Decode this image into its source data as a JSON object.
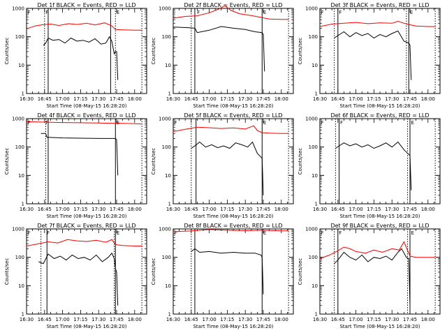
{
  "chart_data": [
    {
      "type": "line",
      "title": "Det 1f BLACK = Events, RED = LLD",
      "xlabel": "Start Time (08-May-15 16:28:20)",
      "ylabel": "Counts/sec",
      "yscale": "log",
      "ylim": [
        1,
        1000
      ],
      "xlim": [
        "16:30",
        "18:10"
      ],
      "x_ticks": [
        "16:30",
        "16:45",
        "17:00",
        "17:15",
        "17:30",
        "17:45",
        "18:00"
      ],
      "y_ticks": [
        "1",
        "10",
        "100",
        "1000"
      ],
      "markers": {
        "dotted": [
          "16:45",
          "17:44",
          "18:06"
        ],
        "solid": [
          "16:48",
          "17:40"
        ],
        "flags": [
          {
            "label": "F",
            "x": "16:30"
          },
          {
            "label": "F",
            "x": "16:45"
          },
          {
            "label": "E",
            "x": "17:44"
          }
        ]
      },
      "series": [
        {
          "color": "#ff0000",
          "x": [
            "16:30",
            "16:37",
            "16:42",
            "16:50",
            "16:57",
            "17:05",
            "17:12",
            "17:20",
            "17:27",
            "17:35",
            "17:41",
            "17:44",
            "17:50",
            "18:00",
            "18:06"
          ],
          "values": [
            190,
            240,
            260,
            280,
            250,
            290,
            270,
            300,
            260,
            310,
            240,
            180,
            175,
            170,
            170
          ]
        },
        {
          "color": "#000000",
          "x": [
            "16:44",
            "16:46",
            "16:48",
            "16:52",
            "16:57",
            "17:02",
            "17:07",
            "17:12",
            "17:17",
            "17:22",
            "17:27",
            "17:32",
            "17:36",
            "17:39",
            "17:41",
            "17:43",
            "17:44",
            "17:45",
            "17:46"
          ],
          "values": [
            50,
            60,
            90,
            75,
            80,
            60,
            90,
            70,
            75,
            65,
            85,
            55,
            60,
            100,
            70,
            25,
            30,
            30,
            3
          ]
        }
      ]
    },
    {
      "type": "line",
      "title": "Det 2f BLACK = Events, RED = LLD",
      "xlabel": "Start Time (08-May-15 16:28:20)",
      "ylabel": "Counts/sec",
      "yscale": "log",
      "ylim": [
        1,
        1000
      ],
      "xlim": [
        "16:30",
        "18:10"
      ],
      "x_ticks": [
        "16:30",
        "16:45",
        "17:00",
        "17:15",
        "17:30",
        "17:45",
        "18:00"
      ],
      "y_ticks": [
        "1",
        "10",
        "100",
        "1000"
      ],
      "markers": {
        "dotted": [
          "16:45",
          "18:06"
        ],
        "solid": [
          "16:48",
          "17:44"
        ],
        "flags": [
          {
            "label": "F",
            "x": "16:49"
          },
          {
            "label": "E",
            "x": "17:44"
          }
        ]
      },
      "series": [
        {
          "color": "#ff0000",
          "x": [
            "16:30",
            "16:40",
            "16:50",
            "17:00",
            "17:08",
            "17:13",
            "17:18",
            "17:25",
            "17:35",
            "17:44",
            "17:50",
            "18:00",
            "18:06"
          ],
          "values": [
            450,
            520,
            550,
            700,
            950,
            1250,
            850,
            650,
            560,
            470,
            420,
            410,
            410
          ]
        },
        {
          "color": "#000000",
          "x": [
            "16:30",
            "16:42",
            "16:48",
            "16:50",
            "17:00",
            "17:10",
            "17:20",
            "17:30",
            "17:38",
            "17:44",
            "17:45",
            "17:46"
          ],
          "values": [
            220,
            210,
            200,
            140,
            170,
            230,
            200,
            180,
            150,
            140,
            120,
            6
          ]
        }
      ]
    },
    {
      "type": "line",
      "title": "Det 3f BLACK = Events, RED = LLD",
      "xlabel": "Start Time (08-May-15 16:28:20)",
      "ylabel": "Counts/sec",
      "yscale": "log",
      "ylim": [
        1,
        1000
      ],
      "xlim": [
        "16:30",
        "18:10"
      ],
      "x_ticks": [
        "16:30",
        "16:45",
        "17:00",
        "17:15",
        "17:30",
        "17:45",
        "18:00"
      ],
      "y_ticks": [
        "1",
        "10",
        "100",
        "1000"
      ],
      "markers": {
        "dotted": [
          "16:42",
          "17:42",
          "18:06"
        ],
        "solid": [
          "16:45",
          "17:44"
        ],
        "flags": [
          {
            "label": "F",
            "x": "16:30"
          },
          {
            "label": "F",
            "x": "16:45"
          },
          {
            "label": "E",
            "x": "17:44"
          }
        ]
      },
      "series": [
        {
          "color": "#ff0000",
          "x": [
            "16:30",
            "16:40",
            "16:50",
            "17:00",
            "17:10",
            "17:20",
            "17:30",
            "17:35",
            "17:40",
            "17:44",
            "17:50",
            "18:00",
            "18:06"
          ],
          "values": [
            230,
            280,
            300,
            320,
            290,
            310,
            300,
            350,
            300,
            270,
            240,
            230,
            230
          ]
        },
        {
          "color": "#000000",
          "x": [
            "16:42",
            "16:45",
            "16:50",
            "16:55",
            "17:00",
            "17:05",
            "17:10",
            "17:15",
            "17:20",
            "17:25",
            "17:30",
            "17:35",
            "17:40",
            "17:44",
            "17:45",
            "17:46"
          ],
          "values": [
            90,
            110,
            150,
            100,
            140,
            110,
            130,
            90,
            120,
            100,
            130,
            160,
            70,
            60,
            50,
            3
          ]
        }
      ]
    },
    {
      "type": "line",
      "title": "Det 4f BLACK = Events, RED = LLD",
      "xlabel": "Start Time (08-May-15 16:28:20)",
      "ylabel": "Counts/sec",
      "yscale": "log",
      "ylim": [
        1,
        1000
      ],
      "xlim": [
        "16:30",
        "18:10"
      ],
      "x_ticks": [
        "16:30",
        "16:45",
        "17:00",
        "17:15",
        "17:30",
        "17:45",
        "18:00"
      ],
      "y_ticks": [
        "1",
        "10",
        "100",
        "1000"
      ],
      "markers": {
        "dotted": [
          "16:46",
          "18:06"
        ],
        "solid": [
          "16:48",
          "17:44"
        ],
        "flags": [
          {
            "label": "F",
            "x": "16:30"
          },
          {
            "label": "F",
            "x": "16:45"
          },
          {
            "label": "E",
            "x": "17:44"
          }
        ]
      },
      "series": [
        {
          "color": "#ff0000",
          "x": [
            "16:30",
            "16:40",
            "16:50",
            "17:00",
            "17:10",
            "17:20",
            "17:30",
            "17:40",
            "17:50",
            "18:00",
            "18:06"
          ],
          "values": [
            780,
            760,
            740,
            730,
            720,
            710,
            700,
            690,
            680,
            660,
            650
          ]
        },
        {
          "color": "#000000",
          "x": [
            "16:42",
            "16:46",
            "16:47",
            "16:48",
            "17:00",
            "17:15",
            "17:30",
            "17:40",
            "17:44",
            "17:45",
            "17:46"
          ],
          "values": [
            300,
            300,
            220,
            220,
            210,
            205,
            200,
            200,
            200,
            180,
            10
          ]
        }
      ]
    },
    {
      "type": "line",
      "title": "Det 5f BLACK = Events, RED = LLD",
      "xlabel": "Start Time (08-May-15 16:28:20)",
      "ylabel": "Counts/sec",
      "yscale": "log",
      "ylim": [
        1,
        1000
      ],
      "xlim": [
        "16:30",
        "18:10"
      ],
      "x_ticks": [
        "16:30",
        "16:45",
        "17:00",
        "17:15",
        "17:30",
        "17:45",
        "18:00"
      ],
      "y_ticks": [
        "1",
        "10",
        "100",
        "1000"
      ],
      "markers": {
        "dotted": [
          "16:45",
          "18:06"
        ],
        "solid": [
          "16:49",
          "17:44"
        ],
        "flags": [
          {
            "label": "F",
            "x": "16:30"
          },
          {
            "label": "E",
            "x": "17:44"
          }
        ]
      },
      "series": [
        {
          "color": "#ff0000",
          "x": [
            "16:30",
            "16:40",
            "16:50",
            "17:00",
            "17:10",
            "17:20",
            "17:30",
            "17:37",
            "17:40",
            "17:44",
            "17:50",
            "18:00",
            "18:06"
          ],
          "values": [
            350,
            420,
            500,
            480,
            450,
            470,
            430,
            560,
            380,
            320,
            310,
            300,
            300
          ]
        },
        {
          "color": "#000000",
          "x": [
            "16:45",
            "16:48",
            "16:52",
            "16:57",
            "17:02",
            "17:07",
            "17:12",
            "17:17",
            "17:22",
            "17:27",
            "17:32",
            "17:36",
            "17:40",
            "17:44",
            "17:45"
          ],
          "values": [
            90,
            110,
            150,
            100,
            120,
            95,
            110,
            90,
            140,
            120,
            100,
            150,
            60,
            40,
            2
          ]
        }
      ]
    },
    {
      "type": "line",
      "title": "Det 6f BLACK = Events, RED = LLD",
      "xlabel": "Start Time (08-May-15 16:28:20)",
      "ylabel": "Counts/sec",
      "yscale": "log",
      "ylim": [
        1,
        1000
      ],
      "xlim": [
        "16:30",
        "18:10"
      ],
      "x_ticks": [
        "16:30",
        "16:45",
        "17:00",
        "17:15",
        "17:30",
        "17:45",
        "18:00"
      ],
      "y_ticks": [
        "1",
        "10",
        "100",
        "1000"
      ],
      "markers": {
        "dotted": [
          "16:43",
          "17:43",
          "18:06"
        ],
        "solid": [
          "16:46",
          "17:45"
        ],
        "flags": [
          {
            "label": "F",
            "x": "16:30"
          },
          {
            "label": "F",
            "x": "16:46"
          },
          {
            "label": "E",
            "x": "17:45"
          }
        ]
      },
      "series": [
        {
          "color": "#000000",
          "x": [
            "16:43",
            "16:46",
            "16:50",
            "16:55",
            "17:00",
            "17:05",
            "17:10",
            "17:15",
            "17:20",
            "17:25",
            "17:30",
            "17:35",
            "17:40",
            "17:43",
            "17:45",
            "17:46"
          ],
          "values": [
            90,
            110,
            140,
            110,
            130,
            100,
            120,
            90,
            110,
            140,
            100,
            150,
            80,
            60,
            50,
            3
          ]
        }
      ]
    },
    {
      "type": "line",
      "title": "Det 7f BLACK = Events, RED = LLD",
      "xlabel": "Start Time (08-May-15 16:28:20)",
      "ylabel": "Counts/sec",
      "yscale": "log",
      "ylim": [
        1,
        1000
      ],
      "xlim": [
        "16:30",
        "18:10"
      ],
      "x_ticks": [
        "16:30",
        "16:45",
        "17:00",
        "17:15",
        "17:30",
        "17:45",
        "18:00"
      ],
      "y_ticks": [
        "1",
        "10",
        "100",
        "1000"
      ],
      "markers": {
        "dotted": [
          "16:42",
          "17:43",
          "18:06"
        ],
        "solid": [
          "16:47",
          "17:44"
        ],
        "flags": [
          {
            "label": "F",
            "x": "16:30"
          },
          {
            "label": "F",
            "x": "16:46"
          },
          {
            "label": "E",
            "x": "17:44"
          }
        ]
      },
      "series": [
        {
          "color": "#ff0000",
          "x": [
            "16:30",
            "16:40",
            "16:48",
            "16:56",
            "17:04",
            "17:12",
            "17:20",
            "17:28",
            "17:36",
            "17:41",
            "17:44",
            "17:50",
            "18:00",
            "18:06"
          ],
          "values": [
            250,
            300,
            350,
            320,
            420,
            380,
            360,
            400,
            340,
            420,
            280,
            260,
            250,
            250
          ]
        },
        {
          "color": "#000000",
          "x": [
            "16:40",
            "16:44",
            "16:48",
            "16:53",
            "16:58",
            "17:03",
            "17:08",
            "17:13",
            "17:18",
            "17:23",
            "17:28",
            "17:33",
            "17:38",
            "17:41",
            "17:43",
            "17:44",
            "17:45",
            "17:46"
          ],
          "values": [
            70,
            60,
            130,
            90,
            110,
            80,
            120,
            90,
            100,
            80,
            120,
            70,
            100,
            140,
            90,
            40,
            30,
            2
          ]
        }
      ]
    },
    {
      "type": "line",
      "title": "Det 8f BLACK = Events, RED = LLD",
      "xlabel": "Start Time (08-May-15 16:28:20)",
      "ylabel": "Counts/sec",
      "yscale": "log",
      "ylim": [
        1,
        1000
      ],
      "xlim": [
        "16:30",
        "18:10"
      ],
      "x_ticks": [
        "16:30",
        "16:45",
        "17:00",
        "17:15",
        "17:30",
        "17:45",
        "18:00"
      ],
      "y_ticks": [
        "1",
        "10",
        "100",
        "1000"
      ],
      "markers": {
        "dotted": [
          "16:45",
          "18:06"
        ],
        "solid": [
          "16:48",
          "17:44"
        ],
        "flags": [
          {
            "label": "F",
            "x": "16:30"
          },
          {
            "label": "E",
            "x": "17:44"
          }
        ]
      },
      "series": [
        {
          "color": "#ff0000",
          "x": [
            "16:30",
            "16:45",
            "17:00",
            "17:15",
            "17:30",
            "17:44",
            "17:50",
            "18:00",
            "18:06"
          ],
          "values": [
            800,
            850,
            950,
            900,
            870,
            900,
            880,
            860,
            860
          ]
        },
        {
          "color": "#000000",
          "x": [
            "16:45",
            "16:48",
            "16:52",
            "17:00",
            "17:10",
            "17:20",
            "17:30",
            "17:38",
            "17:43",
            "17:44",
            "17:45"
          ],
          "values": [
            160,
            200,
            150,
            160,
            140,
            150,
            140,
            140,
            120,
            100,
            5
          ]
        }
      ]
    },
    {
      "type": "line",
      "title": "Det 9f BLACK = Events, RED = LLD",
      "xlabel": "Start Time (08-May-15 16:28:20)",
      "ylabel": "Counts/sec",
      "yscale": "log",
      "ylim": [
        1,
        1000
      ],
      "xlim": [
        "16:30",
        "18:10"
      ],
      "x_ticks": [
        "16:30",
        "16:45",
        "17:00",
        "17:15",
        "17:30",
        "17:45",
        "18:00"
      ],
      "y_ticks": [
        "1",
        "10",
        "100",
        "1000"
      ],
      "markers": {
        "dotted": [
          "16:42",
          "17:43",
          "18:06"
        ],
        "solid": [
          "16:45",
          "17:45"
        ],
        "flags": [
          {
            "label": "F",
            "x": "16:30"
          },
          {
            "label": "F",
            "x": "16:45"
          },
          {
            "label": "E",
            "x": "17:45"
          }
        ]
      },
      "series": [
        {
          "color": "#ff0000",
          "x": [
            "16:30",
            "16:38",
            "16:45",
            "16:50",
            "16:55",
            "17:00",
            "17:08",
            "17:15",
            "17:22",
            "17:30",
            "17:36",
            "17:40",
            "17:45",
            "17:50",
            "18:00",
            "18:06"
          ],
          "values": [
            90,
            120,
            170,
            230,
            200,
            160,
            140,
            180,
            150,
            200,
            180,
            350,
            110,
            100,
            100,
            100
          ]
        },
        {
          "color": "#000000",
          "x": [
            "16:42",
            "16:45",
            "16:50",
            "16:55",
            "17:00",
            "17:05",
            "17:10",
            "17:15",
            "17:20",
            "17:25",
            "17:30",
            "17:35",
            "17:38",
            "17:42",
            "17:44",
            "17:45"
          ],
          "values": [
            60,
            80,
            150,
            100,
            80,
            120,
            70,
            100,
            90,
            110,
            80,
            150,
            200,
            100,
            90,
            2
          ]
        }
      ]
    }
  ]
}
